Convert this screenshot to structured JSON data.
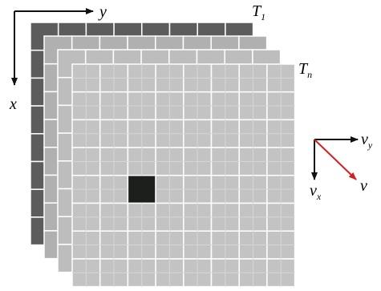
{
  "labels": {
    "y": "y",
    "x": "x",
    "t1": {
      "main": "T",
      "sub": "1"
    },
    "tn": {
      "main": "T",
      "sub": "n"
    },
    "vy": {
      "main": "v",
      "sub": "y"
    },
    "vx": {
      "main": "v",
      "sub": "x"
    },
    "v": "v"
  }
}
